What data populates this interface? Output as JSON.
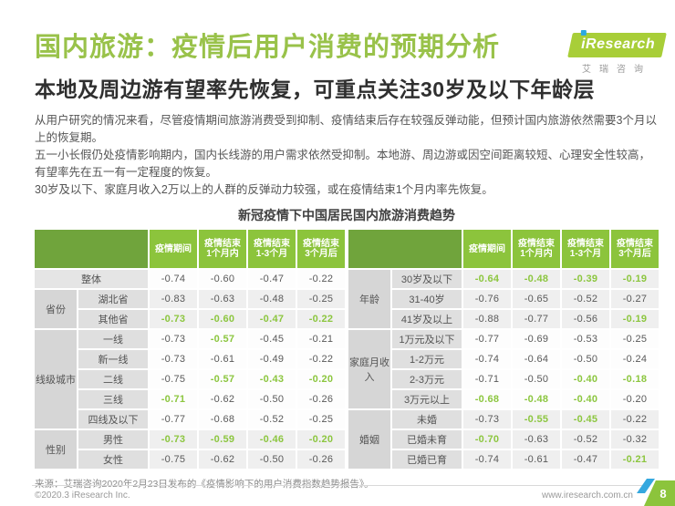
{
  "header": {
    "title": "国内旅游：疫情后用户消费的预期分析",
    "subtitle": "本地及周边游有望率先恢复，可重点关注30岁及以下年龄层",
    "logo_brand": "iResearch",
    "logo_sub": "艾瑞咨询"
  },
  "paragraphs": [
    "从用户研究的情况来看，尽管疫情期间旅游消费受到抑制、疫情结束后存在较强反弹动能，但预计国内旅游依然需要3个月以上的恢复期。",
    "五一小长假仍处疫情影响期内，国内长线游的用户需求依然受抑制。本地游、周边游或因空间距离较短、心理安全性较高，有望率先在五一有一定程度的恢复。",
    "30岁及以下、家庭月收入2万以上的人群的反弹动力较强，或在疫情结束1个月内率先恢复。"
  ],
  "colors": {
    "title_green": "#99C24A",
    "header_green": "#8CC43C",
    "header_dark_green": "#70A43C",
    "highlight_green": "#8CC63F",
    "logo_blue": "#2BA9E0"
  },
  "table": {
    "title": "新冠疫情下中国居民国内旅游消费趋势",
    "col_headers": [
      "疫情期间",
      "疫情结束\n1个月内",
      "疫情结束\n1-3个月",
      "疫情结束\n3个月后"
    ],
    "left_groups": [
      {
        "name": "",
        "shaded": false,
        "rows": [
          {
            "label": "整体",
            "values": [
              "-0.74",
              "-0.60",
              "-0.47",
              "-0.22"
            ],
            "hl": [
              0,
              0,
              0,
              0
            ]
          }
        ]
      },
      {
        "name": "省份",
        "shaded": true,
        "rows": [
          {
            "label": "湖北省",
            "values": [
              "-0.83",
              "-0.63",
              "-0.48",
              "-0.25"
            ],
            "hl": [
              0,
              0,
              0,
              0
            ]
          },
          {
            "label": "其他省",
            "values": [
              "-0.73",
              "-0.60",
              "-0.47",
              "-0.22"
            ],
            "hl": [
              1,
              1,
              1,
              1
            ]
          }
        ]
      },
      {
        "name": "线级城市",
        "shaded": false,
        "rows": [
          {
            "label": "一线",
            "values": [
              "-0.73",
              "-0.57",
              "-0.45",
              "-0.21"
            ],
            "hl": [
              0,
              1,
              0,
              0
            ]
          },
          {
            "label": "新一线",
            "values": [
              "-0.73",
              "-0.61",
              "-0.49",
              "-0.22"
            ],
            "hl": [
              0,
              0,
              0,
              0
            ]
          },
          {
            "label": "二线",
            "values": [
              "-0.75",
              "-0.57",
              "-0.43",
              "-0.20"
            ],
            "hl": [
              0,
              1,
              1,
              1
            ]
          },
          {
            "label": "三线",
            "values": [
              "-0.71",
              "-0.62",
              "-0.50",
              "-0.26"
            ],
            "hl": [
              1,
              0,
              0,
              0
            ]
          },
          {
            "label": "四线及以下",
            "values": [
              "-0.77",
              "-0.68",
              "-0.52",
              "-0.25"
            ],
            "hl": [
              0,
              0,
              0,
              0
            ]
          }
        ]
      },
      {
        "name": "性别",
        "shaded": true,
        "rows": [
          {
            "label": "男性",
            "values": [
              "-0.73",
              "-0.59",
              "-0.46",
              "-0.20"
            ],
            "hl": [
              1,
              1,
              1,
              1
            ]
          },
          {
            "label": "女性",
            "values": [
              "-0.75",
              "-0.62",
              "-0.50",
              "-0.26"
            ],
            "hl": [
              0,
              0,
              0,
              0
            ]
          }
        ]
      }
    ],
    "right_groups": [
      {
        "name": "年龄",
        "shaded": true,
        "rows": [
          {
            "label": "30岁及以下",
            "values": [
              "-0.64",
              "-0.48",
              "-0.39",
              "-0.19"
            ],
            "hl": [
              1,
              1,
              1,
              1
            ]
          },
          {
            "label": "31-40岁",
            "values": [
              "-0.76",
              "-0.65",
              "-0.52",
              "-0.27"
            ],
            "hl": [
              0,
              0,
              0,
              0
            ]
          },
          {
            "label": "41岁及以上",
            "values": [
              "-0.88",
              "-0.77",
              "-0.56",
              "-0.19"
            ],
            "hl": [
              0,
              0,
              0,
              1
            ]
          }
        ]
      },
      {
        "name": "家庭月收入",
        "shaded": false,
        "rows": [
          {
            "label": "1万元及以下",
            "values": [
              "-0.77",
              "-0.69",
              "-0.53",
              "-0.25"
            ],
            "hl": [
              0,
              0,
              0,
              0
            ]
          },
          {
            "label": "1-2万元",
            "values": [
              "-0.74",
              "-0.64",
              "-0.50",
              "-0.24"
            ],
            "hl": [
              0,
              0,
              0,
              0
            ]
          },
          {
            "label": "2-3万元",
            "values": [
              "-0.71",
              "-0.50",
              "-0.40",
              "-0.18"
            ],
            "hl": [
              0,
              0,
              1,
              1
            ]
          },
          {
            "label": "3万元以上",
            "values": [
              "-0.68",
              "-0.48",
              "-0.40",
              "-0.20"
            ],
            "hl": [
              1,
              1,
              1,
              0
            ]
          }
        ]
      },
      {
        "name": "婚姻",
        "shaded": true,
        "rows": [
          {
            "label": "未婚",
            "values": [
              "-0.73",
              "-0.55",
              "-0.45",
              "-0.22"
            ],
            "hl": [
              0,
              1,
              1,
              0
            ]
          },
          {
            "label": "已婚未育",
            "values": [
              "-0.70",
              "-0.63",
              "-0.52",
              "-0.32"
            ],
            "hl": [
              1,
              0,
              0,
              0
            ]
          },
          {
            "label": "已婚已育",
            "values": [
              "-0.74",
              "-0.61",
              "-0.47",
              "-0.21"
            ],
            "hl": [
              0,
              0,
              0,
              1
            ]
          }
        ]
      }
    ]
  },
  "footer": {
    "source": "来源：艾瑞咨询2020年2月23日发布的《疫情影响下的用户消费指数趋势报告》。",
    "copyright": "©2020.3 iResearch Inc.",
    "website": "www.iresearch.com.cn",
    "page_number": "8"
  }
}
